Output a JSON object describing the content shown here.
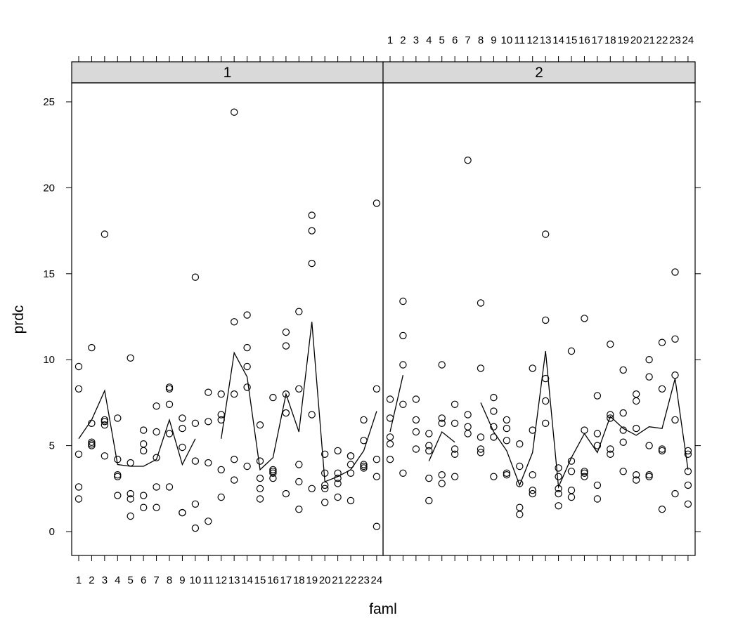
{
  "chart_data": {
    "type": "scatter",
    "layout": "trellis 2 panels side by side",
    "xlabel": "faml",
    "ylabel": "prdc",
    "x_categories": [
      "1",
      "2",
      "3",
      "4",
      "5",
      "6",
      "7",
      "8",
      "9",
      "10",
      "11",
      "12",
      "13",
      "14",
      "15",
      "16",
      "17",
      "18",
      "19",
      "20",
      "21",
      "22",
      "23",
      "24"
    ],
    "ylim": [
      -1.5,
      26
    ],
    "y_ticks": [
      0,
      5,
      10,
      15,
      20,
      25
    ],
    "grid": false,
    "legend": "none",
    "colors": {
      "points": "#000000",
      "line": "#000000",
      "strip": "#d9d9d9"
    },
    "panels": [
      {
        "strip_label": "1",
        "points": [
          {
            "faml": 1,
            "values": [
              9.6,
              8.3,
              4.5,
              2.6,
              1.9
            ]
          },
          {
            "faml": 2,
            "values": [
              10.7,
              6.3,
              5.2,
              5.1,
              5.0
            ]
          },
          {
            "faml": 3,
            "values": [
              17.3,
              6.5,
              6.4,
              6.2,
              4.4
            ]
          },
          {
            "faml": 4,
            "values": [
              6.6,
              4.2,
              3.3,
              3.2,
              2.1
            ]
          },
          {
            "faml": 5,
            "values": [
              10.1,
              4.0,
              2.2,
              1.9,
              0.9
            ]
          },
          {
            "faml": 6,
            "values": [
              5.9,
              5.1,
              4.7,
              2.1,
              1.4
            ]
          },
          {
            "faml": 7,
            "values": [
              7.3,
              5.8,
              4.3,
              2.6,
              1.4
            ]
          },
          {
            "faml": 8,
            "values": [
              8.4,
              8.3,
              7.4,
              5.7,
              2.6
            ]
          },
          {
            "faml": 9,
            "values": [
              6.6,
              6.0,
              4.9,
              1.1,
              1.1
            ]
          },
          {
            "faml": 10,
            "values": [
              14.8,
              6.3,
              4.1,
              1.6,
              0.2
            ]
          },
          {
            "faml": 11,
            "values": [
              8.1,
              6.4,
              4.0,
              0.6
            ]
          },
          {
            "faml": 12,
            "values": [
              8.0,
              6.8,
              6.5,
              3.6,
              2.0
            ]
          },
          {
            "faml": 13,
            "values": [
              24.4,
              12.2,
              8.0,
              4.2,
              3.0
            ]
          },
          {
            "faml": 14,
            "values": [
              12.6,
              10.7,
              9.6,
              8.4,
              3.8
            ]
          },
          {
            "faml": 15,
            "values": [
              6.2,
              4.1,
              3.1,
              2.5,
              1.9
            ]
          },
          {
            "faml": 16,
            "values": [
              7.8,
              3.6,
              3.5,
              3.4,
              3.1
            ]
          },
          {
            "faml": 17,
            "values": [
              11.6,
              10.8,
              8.0,
              6.9,
              2.2
            ]
          },
          {
            "faml": 18,
            "values": [
              12.8,
              8.3,
              3.9,
              2.9,
              1.3
            ]
          },
          {
            "faml": 19,
            "values": [
              18.4,
              17.5,
              15.6,
              6.8,
              2.5
            ]
          },
          {
            "faml": 20,
            "values": [
              4.5,
              3.4,
              2.7,
              2.5,
              1.7
            ]
          },
          {
            "faml": 21,
            "values": [
              4.7,
              3.4,
              3.1,
              2.8,
              2.0
            ]
          },
          {
            "faml": 22,
            "values": [
              4.4,
              4.4,
              3.9,
              3.4,
              1.8
            ]
          },
          {
            "faml": 23,
            "values": [
              6.5,
              5.3,
              3.9,
              3.8,
              3.7
            ]
          },
          {
            "faml": 24,
            "values": [
              19.1,
              8.3,
              4.2,
              3.2,
              0.3
            ]
          }
        ],
        "line_segments": [
          [
            [
              1,
              5.4
            ],
            [
              2,
              6.5
            ],
            [
              3,
              8.2
            ],
            [
              4,
              3.9
            ],
            [
              5,
              3.8
            ],
            [
              6,
              3.8
            ],
            [
              7,
              4.2
            ],
            [
              8,
              6.5
            ],
            [
              9,
              3.9
            ],
            [
              10,
              5.4
            ]
          ],
          [
            [
              12,
              5.4
            ],
            [
              13,
              10.4
            ],
            [
              14,
              9.0
            ],
            [
              15,
              3.6
            ],
            [
              16,
              4.3
            ],
            [
              17,
              8.0
            ],
            [
              18,
              5.8
            ],
            [
              19,
              12.2
            ],
            [
              20,
              2.9
            ],
            [
              21,
              3.2
            ],
            [
              22,
              3.6
            ],
            [
              23,
              4.7
            ],
            [
              24,
              7.0
            ]
          ]
        ]
      },
      {
        "strip_label": "2",
        "points": [
          {
            "faml": 1,
            "values": [
              7.7,
              6.6,
              5.5,
              5.1,
              4.2
            ]
          },
          {
            "faml": 2,
            "values": [
              13.4,
              11.4,
              9.7,
              7.4,
              3.4
            ]
          },
          {
            "faml": 3,
            "values": [
              7.7,
              6.5,
              5.8,
              4.8
            ]
          },
          {
            "faml": 4,
            "values": [
              5.7,
              5.0,
              4.7,
              3.1,
              1.8
            ]
          },
          {
            "faml": 5,
            "values": [
              9.7,
              6.6,
              6.3,
              3.3,
              2.8
            ]
          },
          {
            "faml": 6,
            "values": [
              7.4,
              6.3,
              4.8,
              4.5,
              3.2
            ]
          },
          {
            "faml": 7,
            "values": [
              21.6,
              6.8,
              6.1,
              5.7
            ]
          },
          {
            "faml": 8,
            "values": [
              13.3,
              9.5,
              5.5,
              4.8,
              4.6
            ]
          },
          {
            "faml": 9,
            "values": [
              7.8,
              7.0,
              6.1,
              5.5,
              3.2
            ]
          },
          {
            "faml": 10,
            "values": [
              6.5,
              6.0,
              5.3,
              3.4,
              3.3
            ]
          },
          {
            "faml": 11,
            "values": [
              5.1,
              3.8,
              2.8,
              1.4,
              1.0
            ]
          },
          {
            "faml": 12,
            "values": [
              9.5,
              5.9,
              3.3,
              2.4,
              2.2
            ]
          },
          {
            "faml": 13,
            "values": [
              17.3,
              12.3,
              8.9,
              7.6,
              6.3
            ]
          },
          {
            "faml": 14,
            "values": [
              3.7,
              3.2,
              2.5,
              2.2,
              1.5
            ]
          },
          {
            "faml": 15,
            "values": [
              10.5,
              4.1,
              3.5,
              2.4,
              2.0
            ]
          },
          {
            "faml": 16,
            "values": [
              12.4,
              5.9,
              3.5,
              3.4,
              3.2
            ]
          },
          {
            "faml": 17,
            "values": [
              7.9,
              5.7,
              5.0,
              2.7,
              1.9
            ]
          },
          {
            "faml": 18,
            "values": [
              10.9,
              6.8,
              6.6,
              4.8,
              4.5
            ]
          },
          {
            "faml": 19,
            "values": [
              9.4,
              6.9,
              5.9,
              5.2,
              3.5
            ]
          },
          {
            "faml": 20,
            "values": [
              8.0,
              7.6,
              6.0,
              3.3,
              3.0
            ]
          },
          {
            "faml": 21,
            "values": [
              10.0,
              9.0,
              5.0,
              3.3,
              3.2
            ]
          },
          {
            "faml": 22,
            "values": [
              11.0,
              8.3,
              4.8,
              4.7,
              1.3
            ]
          },
          {
            "faml": 23,
            "values": [
              15.1,
              11.2,
              9.1,
              6.5,
              2.2
            ]
          },
          {
            "faml": 24,
            "values": [
              4.7,
              4.5,
              3.5,
              2.7,
              1.6
            ]
          }
        ],
        "line_segments": [
          [
            [
              1,
              5.8
            ],
            [
              2,
              9.1
            ]
          ],
          [
            [
              4,
              4.1
            ],
            [
              5,
              5.8
            ],
            [
              6,
              5.2
            ]
          ],
          [
            [
              8,
              7.5
            ],
            [
              9,
              5.8
            ],
            [
              10,
              4.7
            ],
            [
              11,
              2.7
            ],
            [
              12,
              4.6
            ],
            [
              13,
              10.5
            ],
            [
              14,
              2.6
            ],
            [
              15,
              4.3
            ],
            [
              16,
              5.7
            ],
            [
              17,
              4.6
            ],
            [
              18,
              6.7
            ],
            [
              19,
              6.0
            ],
            [
              20,
              5.6
            ],
            [
              21,
              6.1
            ],
            [
              22,
              6.0
            ],
            [
              23,
              8.9
            ],
            [
              24,
              3.6
            ]
          ]
        ]
      }
    ]
  }
}
